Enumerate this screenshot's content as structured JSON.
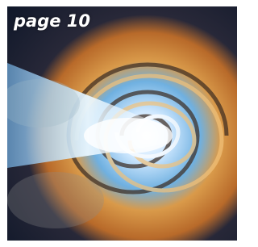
{
  "label": "page 10"
}
